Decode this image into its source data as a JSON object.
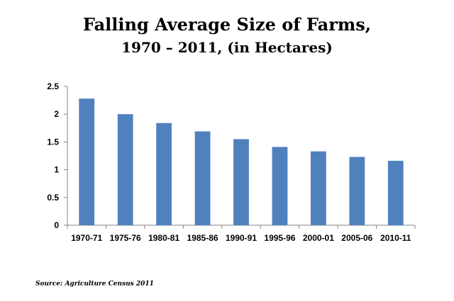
{
  "title": {
    "line1": "Falling Average Size of Farms,",
    "line2": "1970 – 2011,  (in Hectares)"
  },
  "source": "Source: Agriculture Census 2011",
  "colors": {
    "bar": "#4f81bd",
    "axis": "#868686",
    "text": "#000000"
  },
  "chart_data": {
    "type": "bar",
    "title": "Falling Average Size of Farms, 1970 – 2011,  (in Hectares)",
    "xlabel": "",
    "ylabel": "",
    "categories": [
      "1970-71",
      "1975-76",
      "1980-81",
      "1985-86",
      "1990-91",
      "1995-96",
      "2000-01",
      "2005-06",
      "2010-11"
    ],
    "values": [
      2.28,
      2.0,
      1.84,
      1.69,
      1.55,
      1.41,
      1.33,
      1.23,
      1.16
    ],
    "ylim": [
      0,
      2.5
    ],
    "yticks": [
      "0",
      "0.5",
      "1",
      "1.5",
      "2",
      "2.5"
    ],
    "grid": false,
    "legend": "none"
  }
}
